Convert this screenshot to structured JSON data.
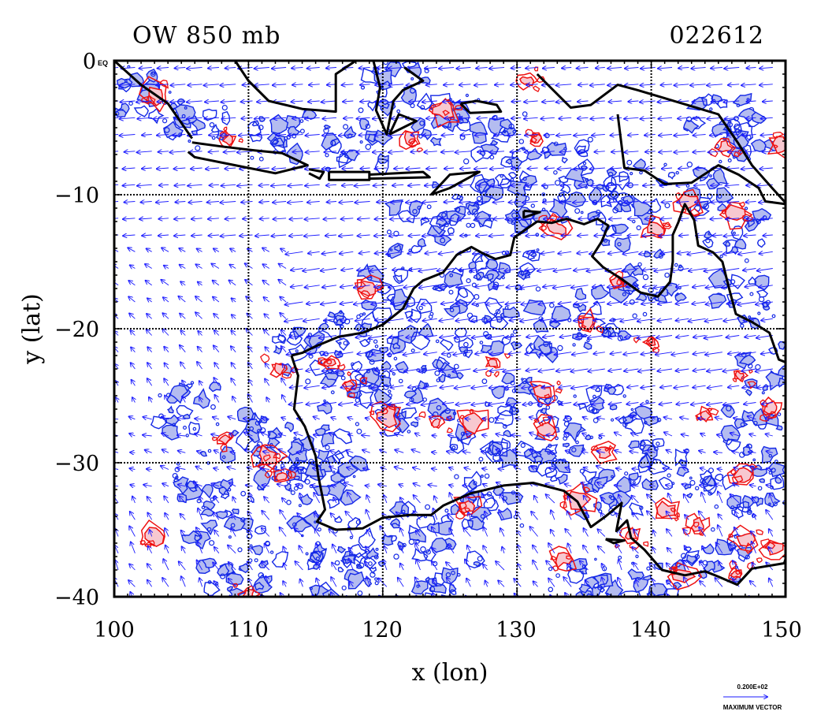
{
  "header": {
    "title": "OW 850 mb",
    "timestamp": "022612"
  },
  "axes": {
    "xlabel": "x (lon)",
    "ylabel": "y (lat)",
    "x_ticks": [
      "100",
      "110",
      "120",
      "130",
      "140",
      "150"
    ],
    "y_ticks": [
      "0",
      "−10",
      "−20",
      "−30",
      "−40"
    ],
    "y_top_suffix": "EQ"
  },
  "legend": {
    "scale_value": "0.200E+02",
    "scale_label": "MAXIMUM VECTOR"
  },
  "map": {
    "lon_range": [
      100,
      150
    ],
    "lat_range": [
      -40,
      0
    ],
    "grid_lons": [
      110,
      120,
      130,
      140
    ],
    "grid_lats": [
      -10,
      -20,
      -30
    ],
    "colors": {
      "coast": "#000000",
      "vector": "#1a1aff",
      "contour_blue": "#1428e6",
      "fill_blue": "#b4bcf0",
      "contour_red": "#ee1111",
      "fill_red": "#f7c8d0"
    },
    "coastlines": [
      [
        [
          100,
          0
        ],
        [
          102,
          -1.8
        ],
        [
          104,
          -3.2
        ],
        [
          105.8,
          -5.8
        ]
      ],
      [
        [
          105.8,
          -6.1
        ],
        [
          108,
          -6.4
        ],
        [
          110.5,
          -6.7
        ],
        [
          112.5,
          -6.9
        ],
        [
          114.4,
          -7.8
        ],
        [
          112,
          -8.4
        ],
        [
          109,
          -7.8
        ],
        [
          106,
          -7.2
        ],
        [
          105.5,
          -6.8
        ]
      ],
      [
        [
          114.5,
          -8.1
        ],
        [
          115.6,
          -8.3
        ],
        [
          115.3,
          -8.8
        ],
        [
          114.5,
          -8.4
        ]
      ],
      [
        [
          116,
          -8.3
        ],
        [
          119,
          -8.3
        ],
        [
          119,
          -8.9
        ],
        [
          116,
          -8.9
        ],
        [
          116,
          -8.3
        ]
      ],
      [
        [
          119,
          -8.5
        ],
        [
          123,
          -8.3
        ],
        [
          123.5,
          -8.7
        ],
        [
          119,
          -8.8
        ]
      ],
      [
        [
          123.6,
          -10
        ],
        [
          125,
          -8.5
        ],
        [
          127.2,
          -8.3
        ],
        [
          125,
          -9.5
        ],
        [
          123.6,
          -10
        ]
      ],
      [
        [
          109,
          0
        ],
        [
          110,
          -1.5
        ],
        [
          111.5,
          -3
        ],
        [
          114,
          -3.6
        ],
        [
          116.5,
          -3.8
        ],
        [
          116.5,
          -1
        ],
        [
          118,
          0
        ]
      ],
      [
        [
          119.3,
          0
        ],
        [
          119.8,
          -2
        ],
        [
          119.5,
          -3.7
        ],
        [
          120.3,
          -5.5
        ],
        [
          120.8,
          -3
        ],
        [
          121.5,
          -2.2
        ],
        [
          123,
          -1.5
        ],
        [
          121.6,
          -0.5
        ]
      ],
      [
        [
          120.5,
          -5.5
        ],
        [
          122.5,
          -4.5
        ],
        [
          121.2,
          -4
        ],
        [
          120.5,
          -5.5
        ]
      ],
      [
        [
          125.8,
          -3.2
        ],
        [
          127,
          -3
        ],
        [
          128.5,
          -3.3
        ],
        [
          128.8,
          -3.8
        ],
        [
          126.5,
          -3.9
        ],
        [
          125.8,
          -3.2
        ]
      ],
      [
        [
          131.5,
          -1
        ],
        [
          134,
          -3.5
        ],
        [
          135.5,
          -3.3
        ],
        [
          137.5,
          -1.8
        ],
        [
          139,
          -2.2
        ],
        [
          141,
          -2.8
        ],
        [
          145,
          -4
        ],
        [
          146.5,
          -6.2
        ],
        [
          147.5,
          -7.8
        ],
        [
          149,
          -9.5
        ],
        [
          150,
          -10.6
        ]
      ],
      [
        [
          137.5,
          -4
        ],
        [
          138,
          -8
        ],
        [
          139.5,
          -8.2
        ],
        [
          141,
          -9.2
        ],
        [
          143,
          -9.1
        ],
        [
          145,
          -7.8
        ],
        [
          146.5,
          -8.5
        ],
        [
          148,
          -9.5
        ],
        [
          148.5,
          -10.5
        ],
        [
          150,
          -10.7
        ]
      ],
      [
        [
          113.2,
          -22
        ],
        [
          113.7,
          -23.5
        ],
        [
          113.4,
          -26
        ],
        [
          114.2,
          -27.3
        ],
        [
          115,
          -29.5
        ],
        [
          115.2,
          -31
        ],
        [
          115.7,
          -33.5
        ],
        [
          115.1,
          -34.4
        ],
        [
          116.5,
          -35
        ],
        [
          118.5,
          -34.9
        ],
        [
          120,
          -34.1
        ],
        [
          122,
          -33.9
        ],
        [
          123.6,
          -33.9
        ],
        [
          124.5,
          -33.2
        ],
        [
          126.5,
          -32.3
        ],
        [
          129,
          -31.7
        ],
        [
          131.2,
          -31.5
        ],
        [
          133.5,
          -32.1
        ],
        [
          134.5,
          -32.9
        ],
        [
          135.5,
          -34.8
        ],
        [
          136.6,
          -34
        ],
        [
          137.8,
          -33
        ],
        [
          137.4,
          -35.1
        ],
        [
          138.2,
          -34.3
        ],
        [
          138.5,
          -35.6
        ],
        [
          139.5,
          -36.5
        ],
        [
          140.8,
          -38
        ],
        [
          142.5,
          -38.4
        ],
        [
          144,
          -38.1
        ],
        [
          145,
          -38.5
        ],
        [
          146.4,
          -39.1
        ],
        [
          147.5,
          -37.9
        ],
        [
          149.9,
          -37.5
        ],
        [
          150,
          -37.2
        ]
      ],
      [
        [
          113.2,
          -22
        ],
        [
          114,
          -21.8
        ],
        [
          114.8,
          -21.4
        ],
        [
          116.7,
          -20.6
        ],
        [
          118.5,
          -20.3
        ],
        [
          120,
          -19.7
        ],
        [
          121.5,
          -18.5
        ],
        [
          122.3,
          -17
        ],
        [
          123,
          -16.4
        ],
        [
          124.5,
          -15.8
        ],
        [
          125.5,
          -14.5
        ],
        [
          126.6,
          -13.9
        ],
        [
          127.5,
          -14.4
        ],
        [
          128.4,
          -14.8
        ],
        [
          129.5,
          -14.5
        ],
        [
          129.8,
          -13.2
        ],
        [
          130.5,
          -12.7
        ],
        [
          131.5,
          -12
        ],
        [
          132.6,
          -12.1
        ],
        [
          133.7,
          -11.8
        ],
        [
          135,
          -12.2
        ],
        [
          136,
          -11.8
        ],
        [
          136.8,
          -12.3
        ],
        [
          136.3,
          -13.5
        ],
        [
          135.6,
          -14.6
        ],
        [
          136.4,
          -15.4
        ],
        [
          137.8,
          -16.3
        ],
        [
          139.2,
          -17.3
        ],
        [
          140.5,
          -17.6
        ],
        [
          141.4,
          -16.5
        ],
        [
          141.6,
          -15
        ],
        [
          141.6,
          -13
        ],
        [
          142,
          -12.1
        ],
        [
          142.5,
          -10.7
        ],
        [
          143.2,
          -11.9
        ],
        [
          143.5,
          -13.8
        ],
        [
          144.6,
          -14.3
        ],
        [
          145.3,
          -15
        ],
        [
          145.8,
          -17
        ],
        [
          146.3,
          -18.9
        ],
        [
          147.5,
          -19.5
        ],
        [
          148.8,
          -20.3
        ],
        [
          149.5,
          -22.3
        ],
        [
          150,
          -22.5
        ]
      ],
      [
        [
          130.5,
          -11.2
        ],
        [
          131.7,
          -11.3
        ],
        [
          130.5,
          -11.7
        ],
        [
          130.5,
          -11.2
        ]
      ],
      [
        [
          136.6,
          -35.7
        ],
        [
          138,
          -35.8
        ],
        [
          137.2,
          -36
        ],
        [
          136.6,
          -35.7
        ]
      ],
      [
        [
          144.6,
          -40
        ],
        [
          145,
          -40.3
        ]
      ]
    ],
    "red_patches": [
      [
        111.5,
        -29.5
      ],
      [
        112.5,
        -31
      ],
      [
        108.2,
        -28.2
      ],
      [
        112.3,
        -23
      ],
      [
        116,
        -22.6
      ],
      [
        117.5,
        -24.2
      ],
      [
        120.3,
        -26.5
      ],
      [
        124,
        -27
      ],
      [
        126.7,
        -26.9
      ],
      [
        132.2,
        -27.6
      ],
      [
        134.5,
        -32.7
      ],
      [
        138.5,
        -35.4
      ],
      [
        141.2,
        -33.6
      ],
      [
        143.5,
        -34.7
      ],
      [
        146.8,
        -30.8
      ],
      [
        147,
        -35.7
      ],
      [
        149.2,
        -36.5
      ],
      [
        146.6,
        -23.5
      ],
      [
        146.3,
        -11.5
      ],
      [
        145.5,
        -6.5
      ],
      [
        149.7,
        -6.3
      ],
      [
        142.8,
        -10.6
      ],
      [
        133,
        -12.5
      ],
      [
        140.3,
        -12.6
      ],
      [
        137.4,
        -16.5
      ],
      [
        135.2,
        -19.4
      ],
      [
        128.2,
        -22.5
      ],
      [
        132,
        -24.7
      ],
      [
        133.4,
        -37.2
      ],
      [
        142.4,
        -38.5
      ],
      [
        146.3,
        -38.3
      ],
      [
        126.3,
        -33.2
      ],
      [
        118.8,
        -16.9
      ],
      [
        110,
        -39.8
      ],
      [
        103,
        -35.5
      ],
      [
        131.5,
        -5.8
      ],
      [
        130.7,
        -1.5
      ],
      [
        122,
        -5.8
      ],
      [
        124.5,
        -3.7
      ],
      [
        103,
        -2.5
      ],
      [
        108.5,
        -5.9
      ],
      [
        149,
        -26
      ],
      [
        144,
        -26.5
      ],
      [
        136.5,
        -29.2
      ],
      [
        140,
        -21
      ]
    ],
    "blue_patches": [
      [
        102,
        -2.5
      ],
      [
        106,
        -4.6
      ],
      [
        112.5,
        -5.5
      ],
      [
        118,
        -6.5
      ],
      [
        121,
        -2
      ],
      [
        125,
        -4.5
      ],
      [
        128,
        -6
      ],
      [
        133,
        -7.5
      ],
      [
        137,
        -9.5
      ],
      [
        145,
        -4.5
      ],
      [
        148,
        -5.5
      ],
      [
        143,
        -9.5
      ],
      [
        146.5,
        -13
      ],
      [
        147,
        -18
      ],
      [
        149,
        -23
      ],
      [
        148,
        -28
      ],
      [
        145,
        -32
      ],
      [
        145,
        -37
      ],
      [
        141,
        -30
      ],
      [
        138,
        -26
      ],
      [
        134,
        -27
      ],
      [
        130,
        -25
      ],
      [
        127,
        -28
      ],
      [
        122,
        -26
      ],
      [
        118,
        -25
      ],
      [
        116,
        -29
      ],
      [
        115.5,
        -32
      ],
      [
        114.5,
        -22
      ],
      [
        117,
        -20
      ],
      [
        120,
        -22
      ],
      [
        124,
        -22
      ],
      [
        128,
        -20
      ],
      [
        133,
        -20
      ],
      [
        137,
        -19
      ],
      [
        140,
        -16
      ],
      [
        129,
        -16
      ],
      [
        126,
        -17
      ],
      [
        121,
        -17.5
      ],
      [
        123,
        -12.5
      ],
      [
        126,
        -11
      ],
      [
        129,
        -10
      ],
      [
        132,
        -11
      ],
      [
        138,
        -12
      ],
      [
        133,
        -30
      ],
      [
        137,
        -32.5
      ],
      [
        128,
        -33
      ],
      [
        123,
        -35
      ],
      [
        119,
        -36
      ],
      [
        113,
        -36
      ],
      [
        108,
        -34
      ],
      [
        107,
        -31
      ],
      [
        105.5,
        -26
      ],
      [
        111,
        -28
      ],
      [
        113,
        -30.5
      ],
      [
        109,
        -38
      ],
      [
        117,
        -39
      ],
      [
        125,
        -38.5
      ],
      [
        135,
        -38.5
      ],
      [
        140,
        -39
      ],
      [
        149,
        -32
      ]
    ]
  }
}
